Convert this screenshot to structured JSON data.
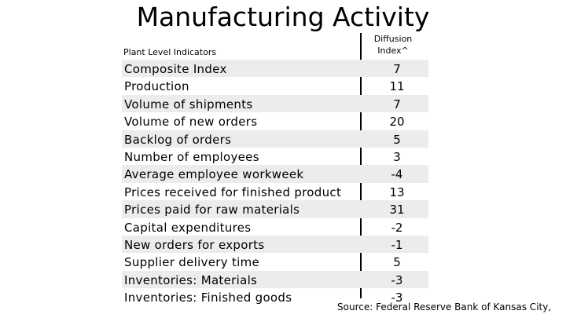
{
  "title": "Manufacturing Activity",
  "header": {
    "left_label": "Plant Level Indicators",
    "right_label_line1": "Diffusion",
    "right_label_line2": "Index^"
  },
  "rows": [
    {
      "label": "Composite Index",
      "value": "7"
    },
    {
      "label": "Production",
      "value": "11"
    },
    {
      "label": "Volume of shipments",
      "value": "7"
    },
    {
      "label": "Volume of new orders",
      "value": "20"
    },
    {
      "label": "Backlog of orders",
      "value": "5"
    },
    {
      "label": "Number of employees",
      "value": "3"
    },
    {
      "label": "Average employee workweek",
      "value": "-4"
    },
    {
      "label": "Prices received for finished product",
      "value": "13"
    },
    {
      "label": "Prices paid for raw materials",
      "value": "31"
    },
    {
      "label": "Capital expenditures",
      "value": "-2"
    },
    {
      "label": "New orders for exports",
      "value": "-1"
    },
    {
      "label": "Supplier delivery time",
      "value": "5"
    },
    {
      "label": "Inventories: Materials",
      "value": "-3"
    },
    {
      "label": "Inventories: Finished goods",
      "value": "-3"
    }
  ],
  "source": "Source: Federal Reserve Bank of Kansas City,"
}
